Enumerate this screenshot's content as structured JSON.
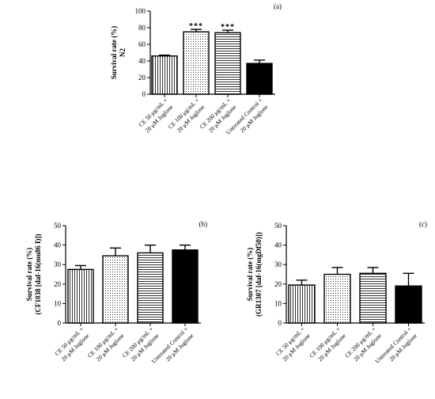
{
  "chart_data": [
    {
      "id": "a",
      "type": "bar",
      "panel_label": "(a)",
      "ylabel": [
        "Survival rate (%)",
        "N2"
      ],
      "ylim": [
        0,
        100
      ],
      "yticks": [
        0,
        20,
        40,
        60,
        80,
        100
      ],
      "categories": [
        [
          "CE 50 μg/mL +",
          "20 μM Juglone"
        ],
        [
          "CE 100 μg/mL +",
          "20 μM Juglone"
        ],
        [
          "CE 200 μg/mL +",
          "20 μM Juglone"
        ],
        [
          "Untreated Control +",
          "20 μM Juglone"
        ]
      ],
      "values": [
        46,
        75,
        74,
        37
      ],
      "errors": [
        1,
        3,
        3,
        4
      ],
      "significance": [
        "",
        "***",
        "***",
        ""
      ],
      "patterns": [
        "vertical-lines",
        "dots",
        "horizontal-lines",
        "solid"
      ]
    },
    {
      "id": "b",
      "type": "bar",
      "panel_label": "(b)",
      "ylabel": [
        "Survival rate (%)",
        "(CF1038 [daf-16(mu86 I)])"
      ],
      "ylim": [
        0,
        50
      ],
      "yticks": [
        0,
        10,
        20,
        30,
        40,
        50
      ],
      "categories": [
        [
          "CE 50 μg/mL +",
          "20 μM Juglone"
        ],
        [
          "CE 100 μg/mL +",
          "20 μM Juglone"
        ],
        [
          "CE 200 μg/mL +",
          "20 μM Juglone"
        ],
        [
          "Untreated Control +",
          "20 μM Juglone"
        ]
      ],
      "values": [
        27.5,
        34.5,
        36,
        37.5
      ],
      "errors": [
        2,
        4,
        4,
        2.5
      ],
      "significance": [
        "",
        "",
        "",
        ""
      ],
      "patterns": [
        "vertical-lines",
        "dots",
        "horizontal-lines",
        "solid"
      ]
    },
    {
      "id": "c",
      "type": "bar",
      "panel_label": "(c)",
      "ylabel": [
        "Survival rate (%)",
        "(GR1307 [daf-16(mgDf50)])"
      ],
      "ylim": [
        0,
        50
      ],
      "yticks": [
        0,
        10,
        20,
        30,
        40,
        50
      ],
      "categories": [
        [
          "CE 50 μg/mL +",
          "20 μM Juglone"
        ],
        [
          "CE 100 μg/mL +",
          "20 μM Juglone"
        ],
        [
          "CE 200 μg/mL +",
          "20 μM Juglone"
        ],
        [
          "Untreated Control +",
          "20 μM Juglone"
        ]
      ],
      "values": [
        19.5,
        25,
        25.5,
        19
      ],
      "errors": [
        2.5,
        3.5,
        3,
        6.5
      ],
      "significance": [
        "",
        "",
        "",
        ""
      ],
      "patterns": [
        "vertical-lines",
        "dots",
        "horizontal-lines",
        "solid"
      ]
    }
  ]
}
